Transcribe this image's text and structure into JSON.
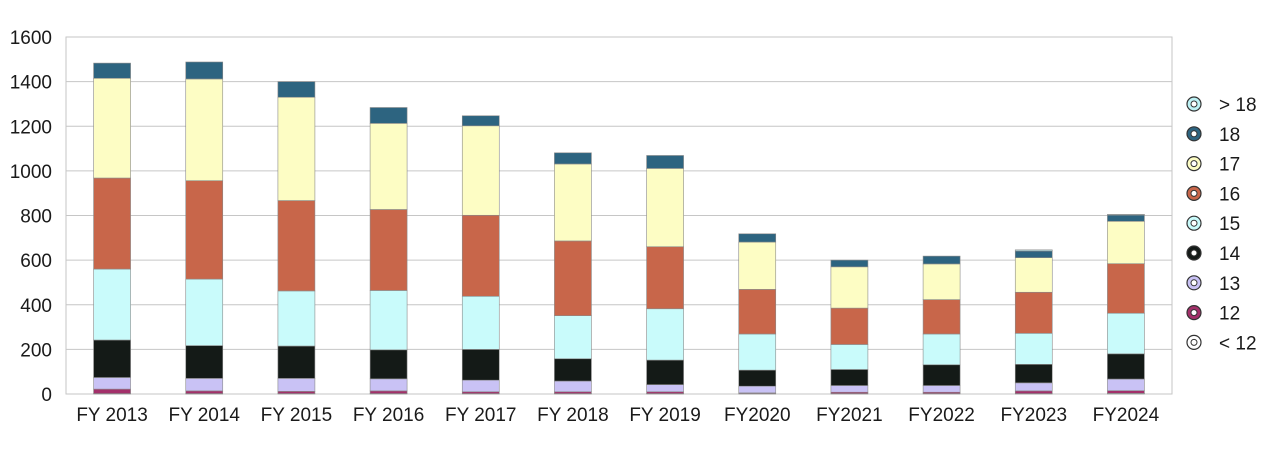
{
  "chart_data": {
    "type": "bar",
    "stacked": true,
    "categories": [
      "FY 2013",
      "FY 2014",
      "FY 2015",
      "FY 2016",
      "FY 2017",
      "FY 2018",
      "FY 2019",
      "FY2020",
      "FY2021",
      "FY2022",
      "FY2023",
      "FY2024"
    ],
    "series": [
      {
        "name": "< 12",
        "color": "#ffffff",
        "values": [
          2,
          2,
          2,
          2,
          2,
          2,
          2,
          2,
          2,
          2,
          2,
          3
        ]
      },
      {
        "name": "12",
        "color": "#a3306a",
        "values": [
          20,
          12,
          10,
          12,
          8,
          8,
          8,
          3,
          6,
          6,
          12,
          12
        ]
      },
      {
        "name": "13",
        "color": "#c9c2f5",
        "values": [
          52,
          56,
          58,
          54,
          52,
          48,
          32,
          30,
          30,
          30,
          36,
          52
        ]
      },
      {
        "name": "14",
        "color": "#141a17",
        "values": [
          168,
          147,
          145,
          130,
          138,
          100,
          110,
          72,
          72,
          93,
          83,
          113
        ]
      },
      {
        "name": "15",
        "color": "#c9fbfb",
        "values": [
          318,
          298,
          247,
          266,
          238,
          193,
          230,
          162,
          112,
          138,
          139,
          182
        ]
      },
      {
        "name": "16",
        "color": "#c8664a",
        "values": [
          408,
          441,
          405,
          363,
          363,
          335,
          278,
          200,
          163,
          154,
          184,
          222
        ]
      },
      {
        "name": "17",
        "color": "#fdfdc4",
        "values": [
          447,
          456,
          463,
          386,
          401,
          345,
          351,
          212,
          185,
          160,
          155,
          190
        ]
      },
      {
        "name": "18",
        "color": "#2d6480",
        "values": [
          68,
          76,
          70,
          71,
          45,
          50,
          58,
          37,
          30,
          35,
          30,
          28
        ]
      },
      {
        "name": "> 18",
        "color": "#bdf2f5",
        "values": [
          0,
          0,
          0,
          0,
          0,
          0,
          0,
          0,
          0,
          0,
          5,
          3
        ]
      }
    ],
    "yticks": [
      "0",
      "200",
      "400",
      "600",
      "800",
      "1000",
      "1200",
      "1400",
      "1600"
    ],
    "ylim": [
      0,
      1600
    ],
    "grid": true,
    "legend_position": "right",
    "legend_order": [
      "> 18",
      "18",
      "17",
      "16",
      "15",
      "14",
      "13",
      "12",
      "< 12"
    ]
  }
}
